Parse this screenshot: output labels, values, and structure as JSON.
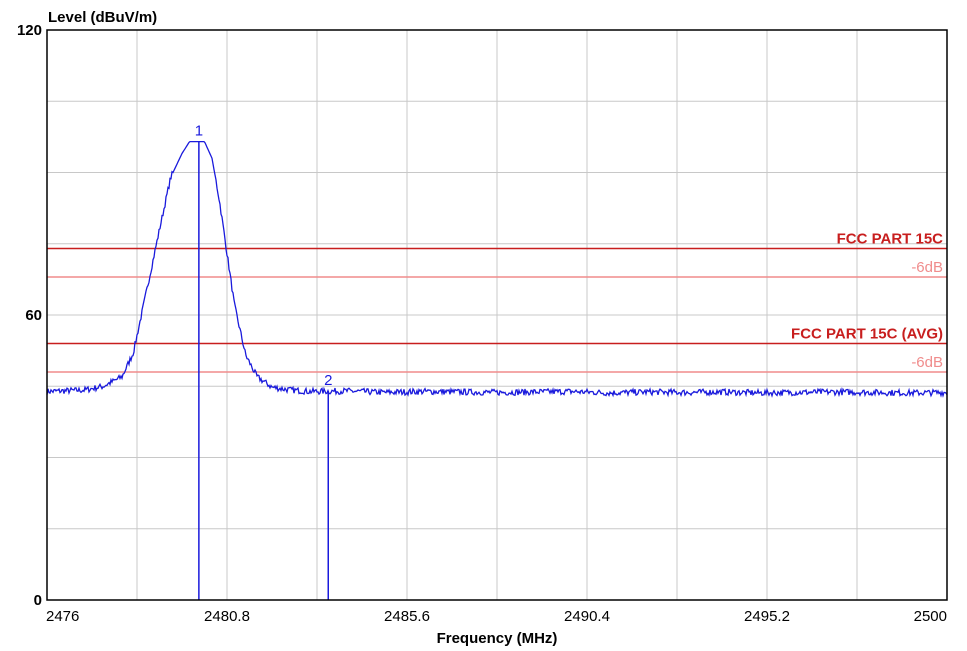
{
  "chart_data": {
    "type": "line",
    "title": "",
    "ylabel": "Level (dBuV/m)",
    "xlabel": "Frequency (MHz)",
    "xlim": [
      2476,
      2500
    ],
    "ylim": [
      0,
      120
    ],
    "x_ticks": [
      "2476",
      "2480.8",
      "2485.6",
      "2490.4",
      "2495.2",
      "2500"
    ],
    "y_ticks": [
      "0",
      "60",
      "120"
    ],
    "grid": true,
    "series": [
      {
        "color": "#1a1adc",
        "x": [
          2476,
          2477,
          2477.5,
          2478,
          2478.3,
          2478.6,
          2479,
          2479.3,
          2479.6,
          2479.8,
          2480,
          2480.2,
          2480.4,
          2480.6,
          2480.8,
          2481,
          2481.3,
          2481.6,
          2482,
          2482.5,
          2483,
          2484,
          2485,
          2486,
          2487,
          2488,
          2489,
          2490,
          2491,
          2492,
          2493,
          2494,
          2495,
          2496,
          2497,
          2498,
          2499,
          2500
        ],
        "y": [
          43.9,
          44.2,
          45.0,
          47.0,
          52.0,
          63.0,
          78.0,
          89.0,
          94.0,
          96.5,
          96.5,
          96.5,
          93.0,
          84.0,
          73.0,
          62.0,
          51.5,
          47.0,
          44.8,
          44.2,
          43.9,
          44.0,
          43.7,
          43.9,
          43.8,
          43.7,
          43.8,
          43.9,
          43.6,
          43.8,
          43.7,
          43.8,
          43.6,
          43.7,
          43.8,
          43.7,
          43.6,
          43.7
        ]
      }
    ],
    "limit_lines": [
      {
        "label": "FCC PART 15C",
        "value": 74,
        "color": "#c81e1e"
      },
      {
        "label": "-6dB",
        "value": 68,
        "color": "#f08c8c"
      },
      {
        "label": "FCC PART 15C (AVG)",
        "value": 54,
        "color": "#c81e1e"
      },
      {
        "label": "-6dB",
        "value": 48,
        "color": "#f08c8c"
      }
    ],
    "markers": [
      {
        "label": "1",
        "x": 2480.05,
        "y": 96.5
      },
      {
        "label": "2",
        "x": 2483.5,
        "y": 44.0
      }
    ]
  }
}
